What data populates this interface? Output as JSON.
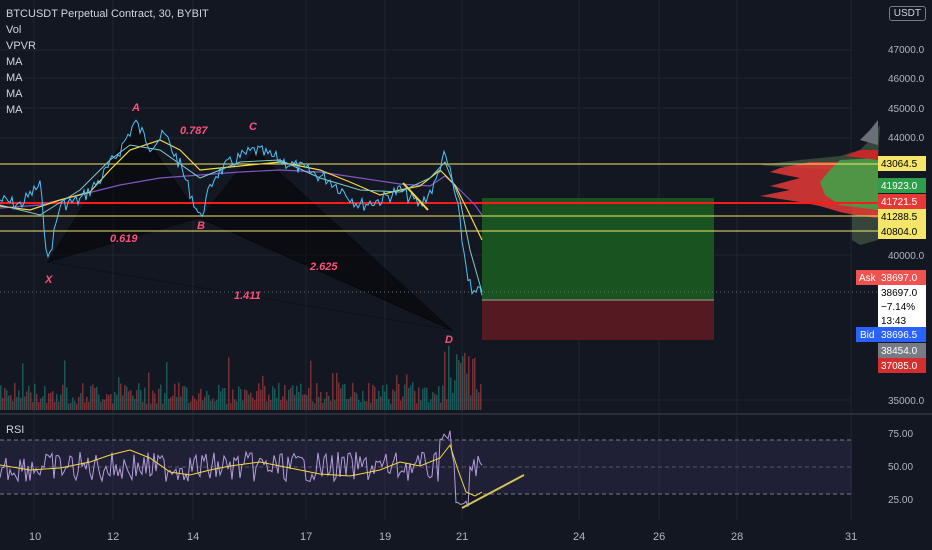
{
  "legend": {
    "title": "BTCUSDT Perpetual Contract, 30, BYBIT",
    "items": [
      "Vol",
      "VPVR",
      "MA",
      "MA",
      "MA",
      "MA"
    ]
  },
  "currency_button": "USDT",
  "price_axis": {
    "labels": [
      "47000.0",
      "46000.0",
      "45000.0",
      "44000.0",
      "40000.0",
      "35000.0"
    ]
  },
  "price_tags": [
    {
      "label": "43064.5",
      "bg": "#f5e66b",
      "fg": "#000000"
    },
    {
      "label": "41923.0",
      "bg": "#2e9e4a",
      "fg": "#ffffff"
    },
    {
      "label": "41721.5",
      "bg": "#e53935",
      "fg": "#ffffff"
    },
    {
      "label": "41288.5",
      "bg": "#f5e66b",
      "fg": "#000000"
    },
    {
      "label": "40804.0",
      "bg": "#f5e66b",
      "fg": "#000000"
    },
    {
      "label": "38697.0",
      "bg": "#ef5350",
      "fg": "#ffffff",
      "prefix": "Ask"
    },
    {
      "label": "38697.0",
      "bg": "#ffffff",
      "fg": "#000000"
    },
    {
      "label": "−7.14%",
      "bg": "#ffffff",
      "fg": "#000000"
    },
    {
      "label": "13:43",
      "bg": "#ffffff",
      "fg": "#000000"
    },
    {
      "label": "38696.5",
      "bg": "#2962ff",
      "fg": "#ffffff",
      "prefix": "Bid"
    },
    {
      "label": "38454.0",
      "bg": "#787b86",
      "fg": "#ffffff"
    },
    {
      "label": "37085.0",
      "bg": "#d32f2f",
      "fg": "#ffffff"
    }
  ],
  "pattern_labels": [
    {
      "text": "A"
    },
    {
      "text": "C"
    },
    {
      "text": "B"
    },
    {
      "text": "X"
    },
    {
      "text": "D"
    },
    {
      "text": "0.787"
    },
    {
      "text": "0.619"
    },
    {
      "text": "2.625"
    },
    {
      "text": "1.411"
    }
  ],
  "rsi": {
    "label": "RSI",
    "axis": [
      "75.00",
      "50.00",
      "25.00"
    ]
  },
  "time_axis": [
    "10",
    "12",
    "14",
    "17",
    "19",
    "21",
    "24",
    "26",
    "28",
    "31"
  ],
  "colors": {
    "background": "#131722",
    "price_line": "#4fc3f7",
    "ma_yellow": "#f5d742",
    "ma_purple": "#7e57c2",
    "horizontal_yellow": "#f5e66b",
    "horizontal_red": "#ff1a1a",
    "profit_zone": "#1b5e20",
    "loss_zone": "#5d1a22",
    "pattern_label": "#ff4f7b",
    "rsi_line": "#b39ddb",
    "rsi_ma": "#f5d742"
  }
}
